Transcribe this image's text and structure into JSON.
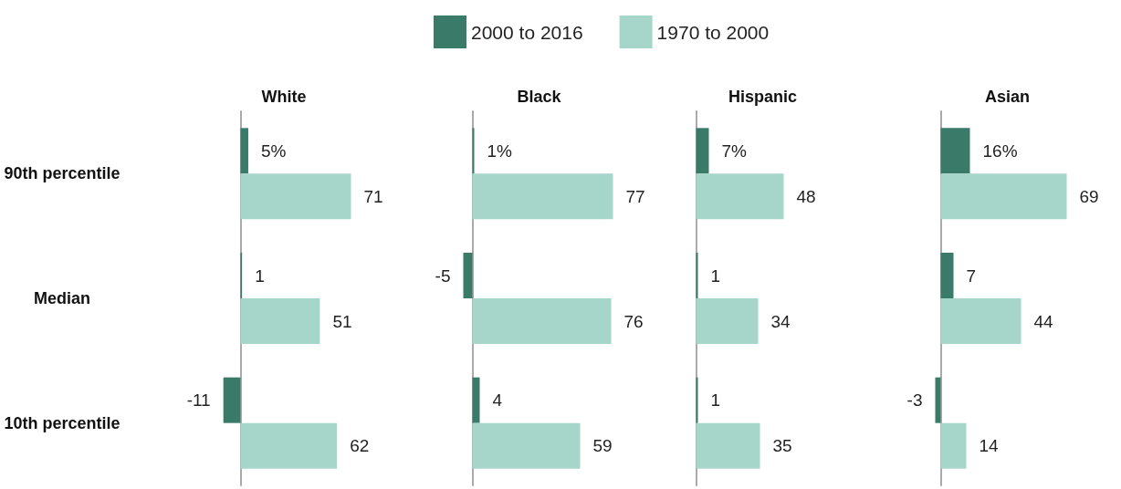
{
  "chart_data": [
    {
      "type": "bar",
      "orientation": "horizontal",
      "title": "White",
      "categories": [
        "90th percentile",
        "Median",
        "10th percentile"
      ],
      "legend": "top",
      "tick_labels": "y",
      "series": [
        {
          "name": "2000 to 2016",
          "color": "#3a7a69",
          "values": [
            5,
            1,
            -11
          ],
          "value_labels": [
            "5%",
            "1",
            "-11"
          ]
        },
        {
          "name": "1970 to 2000",
          "color": "#a6d5ca",
          "values": [
            71,
            51,
            62
          ],
          "value_labels": [
            "71",
            "51",
            "62"
          ]
        }
      ]
    },
    {
      "type": "bar",
      "orientation": "horizontal",
      "title": "Black",
      "categories": [
        "90th percentile",
        "Median",
        "10th percentile"
      ],
      "tick_labels": false,
      "series": [
        {
          "color": "#3a7a69",
          "values": [
            1,
            -5,
            4
          ],
          "value_labels": [
            "1%",
            "-5",
            "4"
          ]
        },
        {
          "color": "#a6d5ca",
          "values": [
            77,
            76,
            59
          ],
          "value_labels": [
            "77",
            "76",
            "59"
          ]
        }
      ]
    },
    {
      "type": "bar",
      "orientation": "horizontal",
      "title": "Hispanic",
      "categories": [
        "90th percentile",
        "Median",
        "10th percentile"
      ],
      "tick_labels": false,
      "series": [
        {
          "color": "#3a7a69",
          "values": [
            7,
            1,
            1
          ],
          "value_labels": [
            "7%",
            "1",
            "1"
          ]
        },
        {
          "color": "#a6d5ca",
          "values": [
            48,
            34,
            35
          ],
          "value_labels": [
            "48",
            "34",
            "35"
          ]
        }
      ]
    },
    {
      "type": "bar",
      "orientation": "horizontal",
      "title": "Asian",
      "categories": [
        "90th percentile",
        "Median",
        "10th percentile"
      ],
      "tick_labels": false,
      "series": [
        {
          "color": "#3a7a69",
          "values": [
            16,
            7,
            -3
          ],
          "value_labels": [
            "16%",
            "7",
            "-3"
          ]
        },
        {
          "color": "#a6d5ca",
          "values": [
            69,
            44,
            14
          ],
          "value_labels": [
            "69",
            "44",
            "14"
          ]
        }
      ]
    }
  ]
}
